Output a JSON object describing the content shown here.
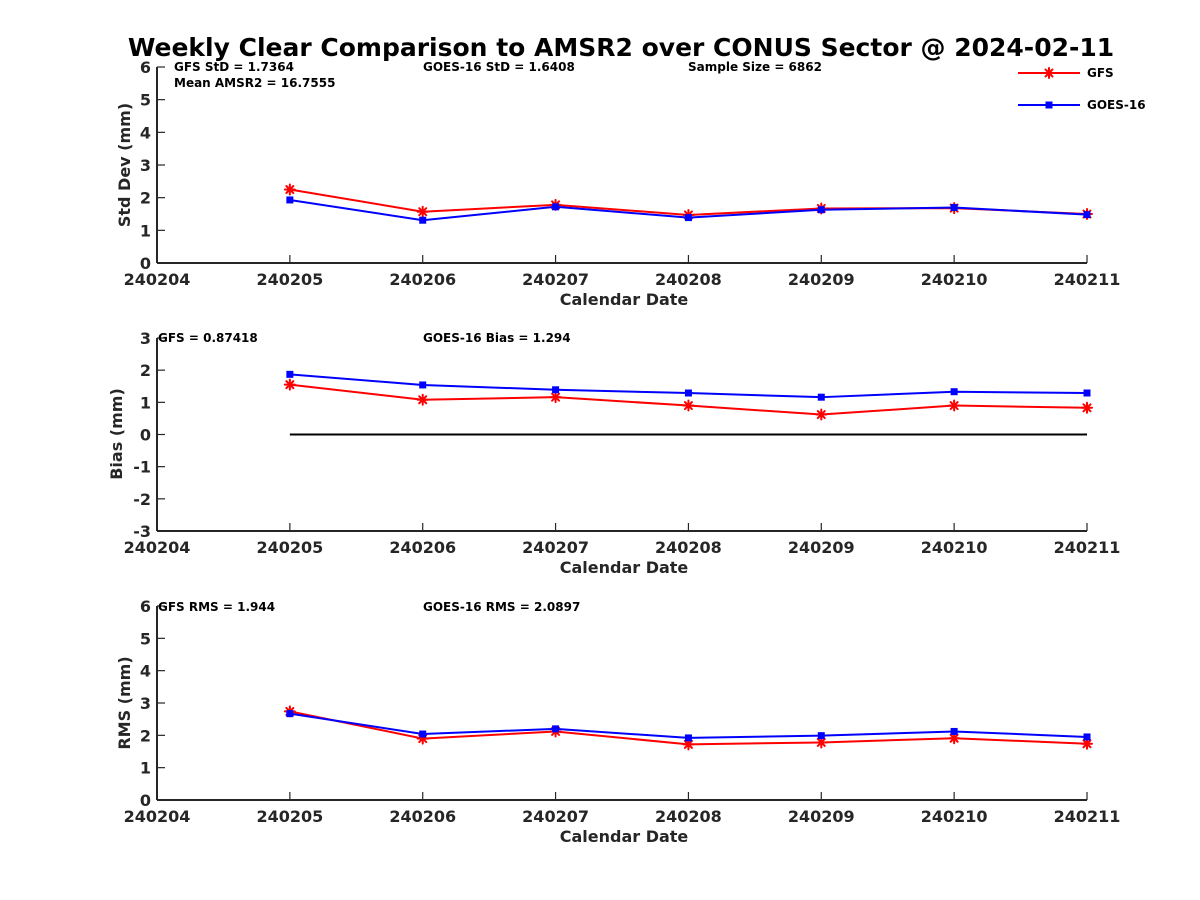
{
  "title": "Weekly Clear Comparison to AMSR2 over CONUS Sector @ 2024-02-11",
  "series_styles": [
    {
      "name": "GFS",
      "color": "#ff0000",
      "marker": "asterisk"
    },
    {
      "name": "GOES-16",
      "color": "#0000ff",
      "marker": "square"
    }
  ],
  "chart_data": [
    {
      "type": "line",
      "xlabel": "Calendar Date",
      "ylabel": "Std Dev (mm)",
      "x_tick_labels": [
        "240204",
        "240205",
        "240206",
        "240207",
        "240208",
        "240209",
        "240210",
        "240211"
      ],
      "y_tick_labels": [
        "0",
        "1",
        "2",
        "3",
        "4",
        "5",
        "6"
      ],
      "ylim": [
        0,
        6
      ],
      "x": [
        "240205",
        "240206",
        "240207",
        "240208",
        "240209",
        "240210",
        "240211"
      ],
      "series": [
        {
          "name": "GFS",
          "values": [
            2.25,
            1.57,
            1.78,
            1.47,
            1.67,
            1.68,
            1.5
          ]
        },
        {
          "name": "GOES-16",
          "values": [
            1.93,
            1.31,
            1.72,
            1.39,
            1.63,
            1.7,
            1.48
          ]
        }
      ],
      "annotations": [
        "GFS StD = 1.7364",
        "Mean AMSR2 = 16.7555",
        "GOES-16 StD = 1.6408",
        "Sample Size = 6862"
      ],
      "legend": {
        "position": "top-right",
        "entries": [
          "GFS",
          "GOES-16"
        ]
      }
    },
    {
      "type": "line",
      "xlabel": "Calendar Date",
      "ylabel": "Bias (mm)",
      "x_tick_labels": [
        "240204",
        "240205",
        "240206",
        "240207",
        "240208",
        "240209",
        "240210",
        "240211"
      ],
      "y_tick_labels": [
        "-3",
        "-2",
        "-1",
        "0",
        "1",
        "2",
        "3"
      ],
      "ylim": [
        -3,
        3
      ],
      "x": [
        "240205",
        "240206",
        "240207",
        "240208",
        "240209",
        "240210",
        "240211"
      ],
      "series": [
        {
          "name": "GFS",
          "values": [
            1.55,
            1.08,
            1.16,
            0.9,
            0.62,
            0.9,
            0.83
          ]
        },
        {
          "name": "GOES-16",
          "values": [
            1.87,
            1.54,
            1.39,
            1.29,
            1.16,
            1.33,
            1.29
          ]
        }
      ],
      "zero_line": true,
      "annotations": [
        "GFS = 0.87418",
        "GOES-16 Bias  = 1.294"
      ]
    },
    {
      "type": "line",
      "xlabel": "Calendar Date",
      "ylabel": "RMS (mm)",
      "x_tick_labels": [
        "240204",
        "240205",
        "240206",
        "240207",
        "240208",
        "240209",
        "240210",
        "240211"
      ],
      "y_tick_labels": [
        "0",
        "1",
        "2",
        "3",
        "4",
        "5",
        "6"
      ],
      "ylim": [
        0,
        6
      ],
      "x": [
        "240205",
        "240206",
        "240207",
        "240208",
        "240209",
        "240210",
        "240211"
      ],
      "series": [
        {
          "name": "GFS",
          "values": [
            2.74,
            1.9,
            2.12,
            1.72,
            1.78,
            1.91,
            1.74
          ]
        },
        {
          "name": "GOES-16",
          "values": [
            2.67,
            2.04,
            2.2,
            1.92,
            1.99,
            2.12,
            1.95
          ]
        }
      ],
      "annotations": [
        "GFS RMS = 1.944",
        "GOES-16 RMS = 2.0897"
      ]
    }
  ]
}
